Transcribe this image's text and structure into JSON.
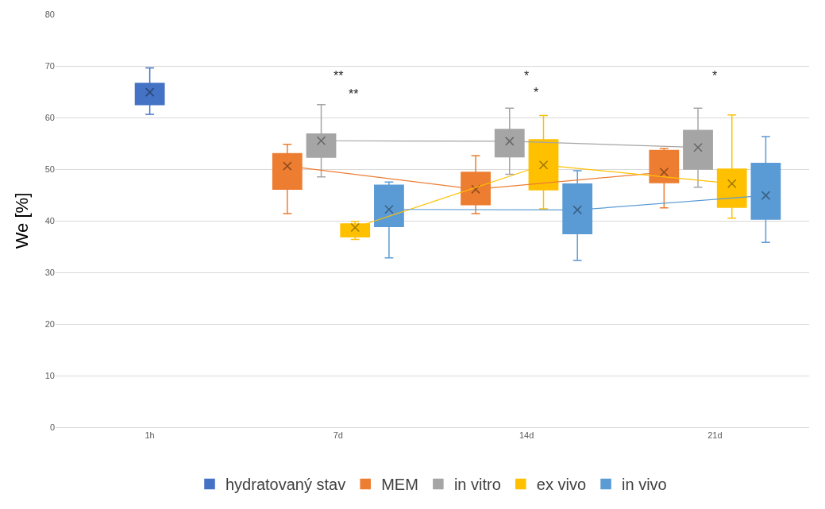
{
  "chart_data": {
    "type": "box",
    "ylabel": "We [%]",
    "categories": [
      "1h",
      "7d",
      "14d",
      "21d"
    ],
    "ylim": [
      0,
      80
    ],
    "yticks": [
      0,
      10,
      20,
      30,
      40,
      50,
      60,
      70,
      80
    ],
    "grid": "y",
    "legend": "bottom",
    "marker": "cross",
    "series": [
      {
        "name": "hydratovaný stav",
        "color": "#4472c4",
        "boxes": [
          {
            "low": 60.6,
            "q1": 62.5,
            "median": 65.0,
            "q3": 66.6,
            "high": 69.6
          },
          null,
          null,
          null
        ]
      },
      {
        "type": "line",
        "color": "#2a4679",
        "values": [
          64.9,
          null,
          null,
          null
        ]
      },
      {
        "name": "MEM",
        "color": "#ed7d31",
        "boxes": [
          null,
          {
            "low": 41.4,
            "q1": 46.1,
            "median": 50.6,
            "q3": 53.0,
            "high": 54.8
          },
          {
            "low": 41.4,
            "q1": 43.1,
            "median": 46.2,
            "q3": 49.4,
            "high": 52.6
          },
          {
            "low": 42.5,
            "q1": 47.4,
            "median": 48.6,
            "q3": 53.6,
            "high": 54.0
          }
        ]
      },
      {
        "type": "line",
        "color": "#ed7d31",
        "values": [
          null,
          50.6,
          46.1,
          49.4
        ]
      },
      {
        "name": "in vitro",
        "color": "#a5a5a5",
        "boxes": [
          null,
          {
            "low": 48.5,
            "q1": 52.3,
            "median": 55.1,
            "q3": 56.8,
            "high": 62.5
          },
          {
            "low": 49.0,
            "q1": 52.4,
            "median": 57.2,
            "q3": 57.7,
            "high": 61.8
          },
          {
            "low": 46.5,
            "q1": 50.0,
            "median": 56.1,
            "q3": 57.5,
            "high": 61.8
          }
        ]
      },
      {
        "type": "line",
        "color": "#a5a5a5",
        "values": [
          null,
          55.5,
          55.4,
          54.2
        ]
      },
      {
        "name": "ex vivo",
        "color": "#ffc000",
        "boxes": [
          null,
          {
            "low": 36.4,
            "q1": 36.9,
            "median": 37.7,
            "q3": 39.4,
            "high": 39.9
          },
          {
            "low": 42.3,
            "q1": 46.0,
            "median": 49.7,
            "q3": 55.7,
            "high": 60.4
          },
          {
            "low": 40.5,
            "q1": 42.6,
            "median": 46.0,
            "q3": 50.0,
            "high": 60.5
          }
        ]
      },
      {
        "type": "line",
        "color": "#ffc000",
        "values": [
          null,
          38.7,
          50.8,
          47.2
        ]
      },
      {
        "name": "in vivo",
        "color": "#5b9bd5",
        "boxes": [
          null,
          {
            "low": 32.8,
            "q1": 38.9,
            "median": 43.7,
            "q3": 46.9,
            "high": 47.5
          },
          {
            "low": 32.3,
            "q1": 37.5,
            "median": 42.0,
            "q3": 47.1,
            "high": 49.7
          },
          {
            "low": 35.8,
            "q1": 40.3,
            "median": 42.5,
            "q3": 51.1,
            "high": 56.3
          }
        ]
      },
      {
        "type": "line",
        "color": "#5b9bd5",
        "values": [
          null,
          42.2,
          42.1,
          44.9
        ]
      }
    ],
    "annotations": [
      "**",
      "**",
      "*",
      "*",
      "*"
    ]
  }
}
